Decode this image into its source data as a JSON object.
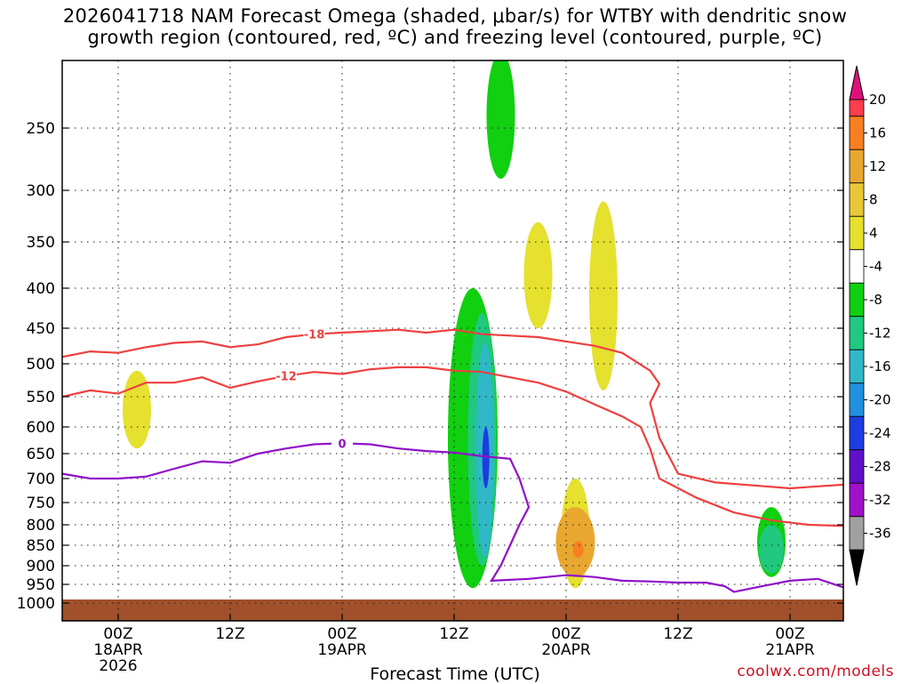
{
  "title": {
    "line1": "2026041718 NAM Forecast Omega (shaded, μbar/s) for WTBY with dendritic snow",
    "line2": "growth region (contoured, red, ºC) and freezing level (contoured, purple, ºC)"
  },
  "credit": "coolwx.com/models",
  "chart_data": {
    "type": "time-height cross section",
    "xlabel": "Forecast Time (UTC)",
    "x_ticks": [
      {
        "hour": 6,
        "label1": "00Z",
        "label2": "18APR",
        "label3": "2026"
      },
      {
        "hour": 18,
        "label1": "12Z",
        "label2": "",
        "label3": ""
      },
      {
        "hour": 30,
        "label1": "00Z",
        "label2": "19APR",
        "label3": ""
      },
      {
        "hour": 42,
        "label1": "12Z",
        "label2": "",
        "label3": ""
      },
      {
        "hour": 54,
        "label1": "00Z",
        "label2": "20APR",
        "label3": ""
      },
      {
        "hour": 66,
        "label1": "12Z",
        "label2": "",
        "label3": ""
      },
      {
        "hour": 78,
        "label1": "00Z",
        "label2": "21APR",
        "label3": ""
      }
    ],
    "xlim_hours": [
      0,
      84
    ],
    "y_axis": {
      "scale": "log-pressure",
      "ticks_mb": [
        250,
        300,
        350,
        400,
        450,
        500,
        550,
        600,
        650,
        700,
        750,
        800,
        850,
        900,
        950,
        1000
      ],
      "ylim_mb": [
        200,
        1050
      ]
    },
    "colorbar": {
      "labels": [
        "20",
        "16",
        "12",
        "8",
        "4",
        "-4",
        "-8",
        "-12",
        "-16",
        "-20",
        "-24",
        "-28",
        "-32",
        "-36"
      ],
      "colors": [
        "#ff3e50",
        "#f87e22",
        "#e8a830",
        "#e8c838",
        "#e6e02e",
        "#ffffff",
        "#10d010",
        "#20c880",
        "#30b8c8",
        "#2090e0",
        "#1c3ee0",
        "#6010c8",
        "#a010c8",
        "#a0a0a0"
      ],
      "top_arrow_color": "#e0107a",
      "bottom_arrow_color": "#000000"
    },
    "contours": [
      {
        "name": "-18",
        "color": "#ee4040",
        "label": "-18",
        "points": [
          [
            0,
            490
          ],
          [
            3,
            482
          ],
          [
            6,
            484
          ],
          [
            9,
            476
          ],
          [
            12,
            470
          ],
          [
            15,
            468
          ],
          [
            18,
            476
          ],
          [
            21,
            472
          ],
          [
            24,
            462
          ],
          [
            27,
            458
          ],
          [
            30,
            456
          ],
          [
            33,
            454
          ],
          [
            36,
            452
          ],
          [
            39,
            456
          ],
          [
            42,
            452
          ],
          [
            45,
            458
          ],
          [
            48,
            460
          ],
          [
            51,
            462
          ],
          [
            54,
            468
          ],
          [
            57,
            474
          ],
          [
            60,
            484
          ],
          [
            63,
            510
          ],
          [
            64,
            530
          ],
          [
            63,
            560
          ],
          [
            64,
            620
          ],
          [
            66,
            690
          ],
          [
            70,
            708
          ],
          [
            74,
            714
          ],
          [
            78,
            720
          ],
          [
            81,
            716
          ],
          [
            84,
            712
          ]
        ]
      },
      {
        "name": "-12",
        "color": "#ee4040",
        "label": "-12",
        "points": [
          [
            0,
            550
          ],
          [
            3,
            540
          ],
          [
            6,
            545
          ],
          [
            9,
            528
          ],
          [
            12,
            528
          ],
          [
            15,
            520
          ],
          [
            18,
            536
          ],
          [
            21,
            526
          ],
          [
            24,
            518
          ],
          [
            27,
            512
          ],
          [
            30,
            515
          ],
          [
            33,
            508
          ],
          [
            36,
            505
          ],
          [
            39,
            505
          ],
          [
            42,
            510
          ],
          [
            45,
            512
          ],
          [
            48,
            520
          ],
          [
            51,
            528
          ],
          [
            54,
            542
          ],
          [
            57,
            562
          ],
          [
            60,
            582
          ],
          [
            62,
            600
          ],
          [
            63,
            640
          ],
          [
            64,
            700
          ],
          [
            68,
            740
          ],
          [
            72,
            772
          ],
          [
            76,
            790
          ],
          [
            80,
            800
          ],
          [
            84,
            803
          ]
        ]
      },
      {
        "name": "0",
        "color": "#9010c8",
        "label": "0",
        "points": [
          [
            0,
            690
          ],
          [
            3,
            700
          ],
          [
            6,
            700
          ],
          [
            9,
            696
          ],
          [
            12,
            680
          ],
          [
            15,
            665
          ],
          [
            18,
            668
          ],
          [
            21,
            650
          ],
          [
            24,
            640
          ],
          [
            27,
            632
          ],
          [
            30,
            630
          ],
          [
            33,
            632
          ],
          [
            36,
            640
          ],
          [
            39,
            645
          ],
          [
            42,
            648
          ],
          [
            45,
            655
          ],
          [
            48,
            660
          ],
          [
            49,
            700
          ],
          [
            50,
            760
          ],
          [
            49,
            800
          ],
          [
            48,
            850
          ],
          [
            47,
            900
          ],
          [
            46,
            940
          ],
          [
            50,
            935
          ],
          [
            54,
            925
          ],
          [
            57,
            930
          ],
          [
            60,
            940
          ],
          [
            63,
            942
          ],
          [
            66,
            945
          ],
          [
            69,
            945
          ],
          [
            71,
            955
          ],
          [
            72,
            970
          ],
          [
            75,
            955
          ],
          [
            78,
            940
          ],
          [
            81,
            935
          ],
          [
            84,
            960
          ]
        ]
      }
    ],
    "omega_shading": [
      {
        "level": "4 to 8",
        "color": "#e6e02e",
        "hour": 8,
        "mb_top": 510,
        "mb_bottom": 640
      },
      {
        "level": "4 to 8",
        "color": "#e6e02e",
        "hour": 51,
        "mb_top": 330,
        "mb_bottom": 450
      },
      {
        "level": "4 to 8",
        "color": "#e6e02e",
        "hour": 58,
        "mb_top": 310,
        "mb_bottom": 540
      },
      {
        "level": "4 to 8",
        "color": "#e6e02e",
        "hour": 55,
        "mb_top": 700,
        "mb_bottom": 960
      },
      {
        "level": "-4 to -8",
        "color": "#10d010",
        "hour": 47,
        "mb_top": 200,
        "mb_bottom": 290
      },
      {
        "level": "-4 to -8",
        "color": "#10d010",
        "hour": 44,
        "mb_top": 400,
        "mb_bottom": 960
      },
      {
        "level": "-4 to -8",
        "color": "#10d010",
        "hour": 76,
        "mb_top": 760,
        "mb_bottom": 930
      }
    ]
  }
}
